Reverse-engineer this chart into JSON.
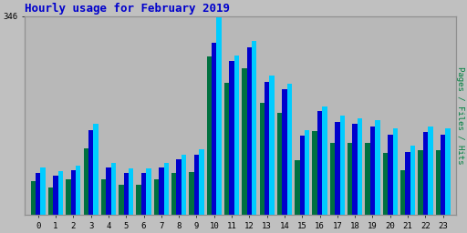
{
  "title": "Hourly usage for February 2019",
  "ylabel_right": "Pages / Files / Hits",
  "hours": [
    0,
    1,
    2,
    3,
    4,
    5,
    6,
    7,
    8,
    9,
    10,
    11,
    12,
    13,
    14,
    15,
    16,
    17,
    18,
    19,
    20,
    21,
    22,
    23
  ],
  "pages": [
    58,
    48,
    62,
    115,
    62,
    52,
    52,
    62,
    72,
    75,
    275,
    230,
    255,
    195,
    178,
    95,
    145,
    125,
    125,
    125,
    108,
    78,
    112,
    112
  ],
  "files": [
    72,
    68,
    78,
    148,
    82,
    72,
    72,
    82,
    96,
    105,
    300,
    268,
    292,
    232,
    218,
    138,
    180,
    162,
    158,
    154,
    140,
    110,
    144,
    140
  ],
  "hits": [
    82,
    76,
    86,
    158,
    90,
    80,
    80,
    90,
    105,
    114,
    345,
    278,
    302,
    242,
    228,
    148,
    188,
    172,
    168,
    164,
    150,
    120,
    154,
    150
  ],
  "ylim": [
    0,
    346
  ],
  "color_pages": "#007040",
  "color_files": "#0000cc",
  "color_hits": "#00ccff",
  "bg_color": "#c0c0c0",
  "plot_bg": "#b8b8b8",
  "title_color": "#0000cc",
  "ylabel_color": "#008040",
  "grid_color": "#aaaaaa",
  "bar_width": 0.28,
  "figsize": [
    5.12,
    2.56
  ],
  "dpi": 100
}
